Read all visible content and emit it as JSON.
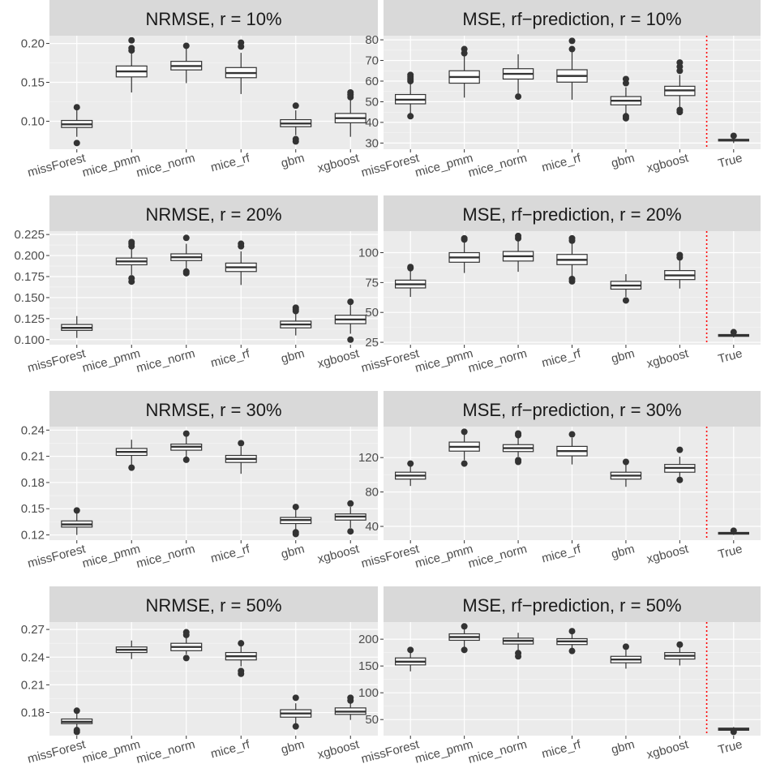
{
  "chart_data": [
    {
      "type": "boxplot",
      "title": "NRMSE, r = 10%",
      "categories": [
        "missForest",
        "mice_pmm",
        "mice_norm",
        "mice_rf",
        "gbm",
        "xgboost"
      ],
      "yticks": [
        0.1,
        0.15,
        0.2
      ],
      "ytick_labels": [
        "0.10",
        "0.15",
        "0.20"
      ],
      "ylim": [
        0.064,
        0.21
      ],
      "boxes": [
        {
          "min": 0.08,
          "q1": 0.092,
          "median": 0.096,
          "q3": 0.101,
          "max": 0.114,
          "outliers": [
            0.072,
            0.118
          ]
        },
        {
          "min": 0.137,
          "q1": 0.157,
          "median": 0.164,
          "q3": 0.171,
          "max": 0.189,
          "outliers": [
            0.191,
            0.194,
            0.204
          ]
        },
        {
          "min": 0.149,
          "q1": 0.166,
          "median": 0.171,
          "q3": 0.177,
          "max": 0.193,
          "outliers": [
            0.197
          ]
        },
        {
          "min": 0.135,
          "q1": 0.156,
          "median": 0.162,
          "q3": 0.169,
          "max": 0.188,
          "outliers": [
            0.196,
            0.201
          ]
        },
        {
          "min": 0.082,
          "q1": 0.093,
          "median": 0.097,
          "q3": 0.102,
          "max": 0.114,
          "outliers": [
            0.074,
            0.077,
            0.12
          ]
        },
        {
          "min": 0.08,
          "q1": 0.098,
          "median": 0.104,
          "q3": 0.11,
          "max": 0.128,
          "outliers": [
            0.131,
            0.134,
            0.137
          ]
        }
      ]
    },
    {
      "type": "boxplot",
      "title": "MSE, rf−prediction, r = 10%",
      "categories": [
        "missForest",
        "mice_pmm",
        "mice_norm",
        "mice_rf",
        "gbm",
        "xgboost",
        "True"
      ],
      "yticks": [
        30,
        40,
        50,
        60,
        70,
        80
      ],
      "ytick_labels": [
        "30",
        "40",
        "50",
        "60",
        "70",
        "80"
      ],
      "ylim": [
        27,
        82
      ],
      "separator_after_index": 5,
      "boxes": [
        {
          "min": 44,
          "q1": 49,
          "median": 51,
          "q3": 53.5,
          "max": 59,
          "outliers": [
            43,
            60,
            61,
            62,
            63
          ]
        },
        {
          "min": 52,
          "q1": 59,
          "median": 62,
          "q3": 65,
          "max": 72,
          "outliers": [
            73.5,
            75.5
          ]
        },
        {
          "min": 54,
          "q1": 61,
          "median": 63.5,
          "q3": 66,
          "max": 73,
          "outliers": [
            52.5
          ]
        },
        {
          "min": 51,
          "q1": 59.5,
          "median": 62.5,
          "q3": 65.5,
          "max": 74,
          "outliers": [
            75.5,
            79.5
          ]
        },
        {
          "min": 43,
          "q1": 48.5,
          "median": 50.5,
          "q3": 52.5,
          "max": 57,
          "outliers": [
            42,
            43,
            59,
            61
          ]
        },
        {
          "min": 47,
          "q1": 53,
          "median": 55.5,
          "q3": 57.5,
          "max": 63,
          "outliers": [
            45,
            46,
            65,
            67,
            69
          ]
        },
        {
          "min": 30,
          "q1": 31,
          "median": 31.4,
          "q3": 31.8,
          "max": 32.5,
          "outliers": [
            33.5
          ]
        }
      ]
    },
    {
      "type": "boxplot",
      "title": "NRMSE, r = 20%",
      "categories": [
        "missForest",
        "mice_pmm",
        "mice_norm",
        "mice_rf",
        "gbm",
        "xgboost"
      ],
      "yticks": [
        0.1,
        0.125,
        0.15,
        0.175,
        0.2,
        0.225
      ],
      "ytick_labels": [
        "0.100",
        "0.125",
        "0.150",
        "0.175",
        "0.200",
        "0.225"
      ],
      "ylim": [
        0.094,
        0.229
      ],
      "boxes": [
        {
          "min": 0.102,
          "q1": 0.111,
          "median": 0.114,
          "q3": 0.118,
          "max": 0.128,
          "outliers": []
        },
        {
          "min": 0.177,
          "q1": 0.189,
          "median": 0.193,
          "q3": 0.197,
          "max": 0.209,
          "outliers": [
            0.169,
            0.173,
            0.211,
            0.214,
            0.216
          ]
        },
        {
          "min": 0.183,
          "q1": 0.194,
          "median": 0.198,
          "q3": 0.202,
          "max": 0.214,
          "outliers": [
            0.179,
            0.181,
            0.221
          ]
        },
        {
          "min": 0.165,
          "q1": 0.181,
          "median": 0.186,
          "q3": 0.191,
          "max": 0.205,
          "outliers": [
            0.211,
            0.214
          ]
        },
        {
          "min": 0.105,
          "q1": 0.114,
          "median": 0.118,
          "q3": 0.122,
          "max": 0.132,
          "outliers": [
            0.134,
            0.136,
            0.138
          ]
        },
        {
          "min": 0.107,
          "q1": 0.119,
          "median": 0.124,
          "q3": 0.129,
          "max": 0.142,
          "outliers": [
            0.1,
            0.145
          ]
        }
      ]
    },
    {
      "type": "boxplot",
      "title": "MSE, rf−prediction, r = 20%",
      "categories": [
        "missForest",
        "mice_pmm",
        "mice_norm",
        "mice_rf",
        "gbm",
        "xgboost",
        "True"
      ],
      "yticks": [
        25,
        50,
        75,
        100
      ],
      "ytick_labels": [
        "25",
        "50",
        "75",
        "100"
      ],
      "ylim": [
        23,
        118
      ],
      "separator_after_index": 5,
      "boxes": [
        {
          "min": 63,
          "q1": 70.5,
          "median": 73.5,
          "q3": 77,
          "max": 85,
          "outliers": [
            87,
            88
          ]
        },
        {
          "min": 83,
          "q1": 92,
          "median": 96,
          "q3": 100,
          "max": 109,
          "outliers": [
            111,
            112
          ]
        },
        {
          "min": 84,
          "q1": 93,
          "median": 97,
          "q3": 101,
          "max": 110,
          "outliers": [
            112,
            114
          ]
        },
        {
          "min": 80,
          "q1": 90,
          "median": 94,
          "q3": 98.5,
          "max": 108,
          "outliers": [
            76,
            78,
            110,
            112
          ]
        },
        {
          "min": 63,
          "q1": 69.5,
          "median": 72.5,
          "q3": 76,
          "max": 82,
          "outliers": [
            60
          ]
        },
        {
          "min": 70,
          "q1": 77.5,
          "median": 81,
          "q3": 85,
          "max": 94,
          "outliers": [
            96,
            98
          ]
        },
        {
          "min": 29,
          "q1": 30,
          "median": 30.8,
          "q3": 31.5,
          "max": 32.5,
          "outliers": [
            33.5
          ]
        }
      ]
    },
    {
      "type": "boxplot",
      "title": "NRMSE, r = 30%",
      "categories": [
        "missForest",
        "mice_pmm",
        "mice_norm",
        "mice_rf",
        "gbm",
        "xgboost"
      ],
      "yticks": [
        0.12,
        0.15,
        0.18,
        0.21,
        0.24
      ],
      "ytick_labels": [
        "0.12",
        "0.15",
        "0.18",
        "0.21",
        "0.24"
      ],
      "ylim": [
        0.114,
        0.244
      ],
      "boxes": [
        {
          "min": 0.12,
          "q1": 0.129,
          "median": 0.132,
          "q3": 0.136,
          "max": 0.145,
          "outliers": [
            0.148
          ]
        },
        {
          "min": 0.2,
          "q1": 0.211,
          "median": 0.215,
          "q3": 0.219,
          "max": 0.229,
          "outliers": [
            0.197
          ]
        },
        {
          "min": 0.208,
          "q1": 0.217,
          "median": 0.221,
          "q3": 0.224,
          "max": 0.233,
          "outliers": [
            0.206,
            0.236
          ]
        },
        {
          "min": 0.19,
          "q1": 0.203,
          "median": 0.207,
          "q3": 0.211,
          "max": 0.221,
          "outliers": [
            0.225
          ]
        },
        {
          "min": 0.126,
          "q1": 0.133,
          "median": 0.137,
          "q3": 0.14,
          "max": 0.149,
          "outliers": [
            0.121,
            0.123,
            0.152
          ]
        },
        {
          "min": 0.128,
          "q1": 0.137,
          "median": 0.141,
          "q3": 0.144,
          "max": 0.152,
          "outliers": [
            0.124,
            0.156
          ]
        }
      ]
    },
    {
      "type": "boxplot",
      "title": "MSE, rf−prediction, r = 30%",
      "categories": [
        "missForest",
        "mice_pmm",
        "mice_norm",
        "mice_rf",
        "gbm",
        "xgboost",
        "True"
      ],
      "yticks": [
        40,
        80,
        120
      ],
      "ytick_labels": [
        "40",
        "80",
        "120"
      ],
      "ylim": [
        24,
        156
      ],
      "separator_after_index": 5,
      "boxes": [
        {
          "min": 87,
          "q1": 95,
          "median": 99,
          "q3": 103,
          "max": 111,
          "outliers": [
            113
          ]
        },
        {
          "min": 117,
          "q1": 127.5,
          "median": 132.5,
          "q3": 138,
          "max": 147,
          "outliers": [
            113,
            150
          ]
        },
        {
          "min": 121,
          "q1": 127,
          "median": 131,
          "q3": 135,
          "max": 144,
          "outliers": [
            115,
            117,
            146,
            148
          ]
        },
        {
          "min": 112,
          "q1": 122,
          "median": 127.5,
          "q3": 133,
          "max": 143,
          "outliers": [
            147
          ]
        },
        {
          "min": 86,
          "q1": 95,
          "median": 99,
          "q3": 103,
          "max": 112,
          "outliers": [
            115
          ]
        },
        {
          "min": 96,
          "q1": 103,
          "median": 108,
          "q3": 112,
          "max": 121,
          "outliers": [
            94,
            129
          ]
        },
        {
          "min": 30,
          "q1": 31,
          "median": 32,
          "q3": 33,
          "max": 34,
          "outliers": [
            35
          ]
        }
      ]
    },
    {
      "type": "boxplot",
      "title": "NRMSE, r = 50%",
      "categories": [
        "missForest",
        "mice_pmm",
        "mice_norm",
        "mice_rf",
        "gbm",
        "xgboost"
      ],
      "yticks": [
        0.18,
        0.21,
        0.24,
        0.27
      ],
      "ytick_labels": [
        "0.18",
        "0.21",
        "0.24",
        "0.27"
      ],
      "ylim": [
        0.155,
        0.278
      ],
      "boxes": [
        {
          "min": 0.162,
          "q1": 0.168,
          "median": 0.17,
          "q3": 0.173,
          "max": 0.179,
          "outliers": [
            0.159,
            0.161,
            0.182
          ]
        },
        {
          "min": 0.238,
          "q1": 0.245,
          "median": 0.248,
          "q3": 0.251,
          "max": 0.258,
          "outliers": []
        },
        {
          "min": 0.243,
          "q1": 0.247,
          "median": 0.251,
          "q3": 0.255,
          "max": 0.262,
          "outliers": [
            0.239,
            0.264,
            0.267
          ]
        },
        {
          "min": 0.23,
          "q1": 0.237,
          "median": 0.241,
          "q3": 0.245,
          "max": 0.252,
          "outliers": [
            0.222,
            0.225,
            0.255
          ]
        },
        {
          "min": 0.168,
          "q1": 0.175,
          "median": 0.179,
          "q3": 0.183,
          "max": 0.19,
          "outliers": [
            0.165,
            0.196
          ]
        },
        {
          "min": 0.172,
          "q1": 0.178,
          "median": 0.181,
          "q3": 0.185,
          "max": 0.191,
          "outliers": [
            0.193,
            0.196
          ]
        }
      ]
    },
    {
      "type": "boxplot",
      "title": "MSE, rf−prediction, r = 50%",
      "categories": [
        "missForest",
        "mice_pmm",
        "mice_norm",
        "mice_rf",
        "gbm",
        "xgboost",
        "True"
      ],
      "yticks": [
        50,
        100,
        150,
        200
      ],
      "ytick_labels": [
        "50",
        "100",
        "150",
        "200"
      ],
      "ylim": [
        20,
        232
      ],
      "separator_after_index": 5,
      "boxes": [
        {
          "min": 140,
          "q1": 152,
          "median": 158,
          "q3": 165,
          "max": 178,
          "outliers": [
            180
          ]
        },
        {
          "min": 185,
          "q1": 198,
          "median": 204,
          "q3": 210,
          "max": 222,
          "outliers": [
            180,
            224
          ]
        },
        {
          "min": 179,
          "q1": 191,
          "median": 197,
          "q3": 202,
          "max": 212,
          "outliers": [
            168,
            174
          ]
        },
        {
          "min": 181,
          "q1": 190,
          "median": 196,
          "q3": 201,
          "max": 211,
          "outliers": [
            178,
            215
          ]
        },
        {
          "min": 145,
          "q1": 156,
          "median": 162,
          "q3": 168,
          "max": 180,
          "outliers": [
            186
          ]
        },
        {
          "min": 151,
          "q1": 163,
          "median": 169,
          "q3": 175,
          "max": 186,
          "outliers": [
            190
          ]
        },
        {
          "min": 28,
          "q1": 30,
          "median": 32,
          "q3": 34,
          "max": 36,
          "outliers": [
            27
          ]
        }
      ]
    }
  ],
  "colors": {
    "strip_bg": "#d9d9d9",
    "panel_bg": "#ebebeb",
    "grid_major": "#ffffff",
    "box_fill": "#ffffff",
    "box_stroke": "#333333",
    "separator": "#ff0000",
    "tick_text": "#4d4d4d"
  }
}
